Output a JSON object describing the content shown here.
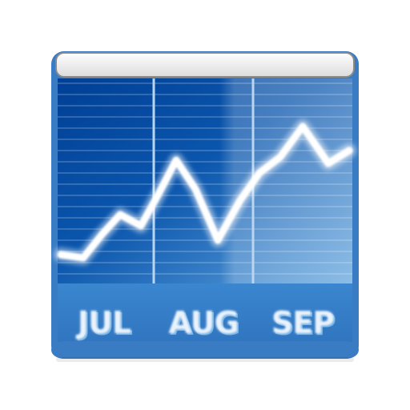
{
  "icon": {
    "name": "stock-chart-icon",
    "colors": {
      "frame": "#3f7fc4",
      "panel_dark": "#0a56a8",
      "panel_light": "#4d95d6",
      "line": "#ffffff",
      "label_text": "#e8f2fb",
      "label_shadow": "#6aa8df",
      "top_bar": "#f4f4f4"
    },
    "months": [
      "JUL",
      "AUG",
      "SEP"
    ]
  }
}
